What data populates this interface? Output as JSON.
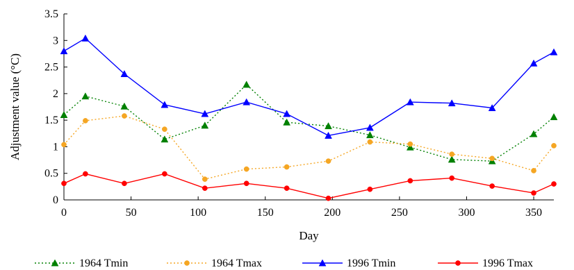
{
  "chart_data": {
    "type": "line",
    "title": "",
    "xlabel": "Day",
    "ylabel": "Adjustment value (°C)",
    "xlim": [
      0,
      365
    ],
    "ylim": [
      0,
      3.5
    ],
    "xticks": [
      0,
      50,
      100,
      150,
      200,
      250,
      300,
      350
    ],
    "yticks": [
      0,
      0.5,
      1,
      1.5,
      2,
      2.5,
      3,
      3.5
    ],
    "grid": false,
    "legend_position": "bottom",
    "series": [
      {
        "name": "1964 Tmin",
        "color": "#008000",
        "line_style": "dotted",
        "marker": "triangle",
        "x": [
          0,
          16,
          45,
          75,
          105,
          136,
          166,
          197,
          228,
          258,
          289,
          319,
          350,
          365
        ],
        "y": [
          1.6,
          1.95,
          1.76,
          1.14,
          1.4,
          2.17,
          1.46,
          1.39,
          1.22,
          0.99,
          0.76,
          0.73,
          1.24,
          1.56
        ]
      },
      {
        "name": "1964 Tmax",
        "color": "#f5a623",
        "line_style": "dotted",
        "marker": "circle",
        "x": [
          0,
          16,
          45,
          75,
          105,
          136,
          166,
          197,
          228,
          258,
          289,
          319,
          350,
          365
        ],
        "y": [
          1.04,
          1.49,
          1.58,
          1.33,
          0.39,
          0.58,
          0.62,
          0.73,
          1.09,
          1.05,
          0.86,
          0.78,
          0.55,
          1.02
        ]
      },
      {
        "name": "1996 Tmin",
        "color": "#0000ff",
        "line_style": "solid",
        "marker": "triangle",
        "x": [
          0,
          16,
          45,
          75,
          105,
          136,
          166,
          197,
          228,
          258,
          289,
          319,
          350,
          365
        ],
        "y": [
          2.8,
          3.04,
          2.37,
          1.79,
          1.62,
          1.84,
          1.62,
          1.21,
          1.36,
          1.84,
          1.82,
          1.73,
          2.57,
          2.78
        ]
      },
      {
        "name": "1996 Tmax",
        "color": "#ff0000",
        "line_style": "solid",
        "marker": "circle",
        "x": [
          0,
          16,
          45,
          75,
          105,
          136,
          166,
          197,
          228,
          258,
          289,
          319,
          350,
          365
        ],
        "y": [
          0.31,
          0.49,
          0.31,
          0.49,
          0.22,
          0.31,
          0.22,
          0.03,
          0.2,
          0.36,
          0.41,
          0.26,
          0.13,
          0.3
        ]
      }
    ]
  }
}
